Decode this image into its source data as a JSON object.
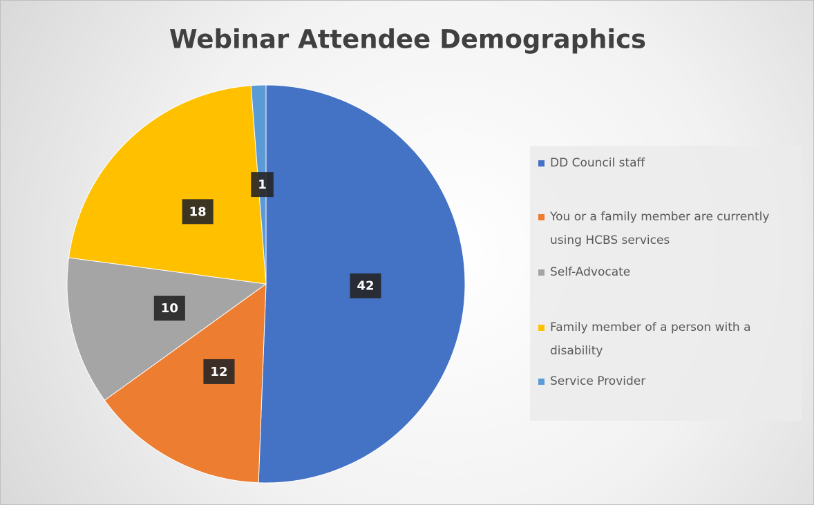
{
  "chart_data": {
    "type": "pie",
    "title": "Webinar Attendee Demographics",
    "categories": [
      "DD Council staff",
      "You or a family member are currently using HCBS services",
      "Self-Advocate",
      "Family member of a person with a disability",
      "Service Provider"
    ],
    "values": [
      42,
      12,
      10,
      18,
      1
    ],
    "colors": [
      "#4472c4",
      "#ed7d31",
      "#a5a5a5",
      "#ffc000",
      "#5b9bd5"
    ],
    "legend": "right"
  }
}
